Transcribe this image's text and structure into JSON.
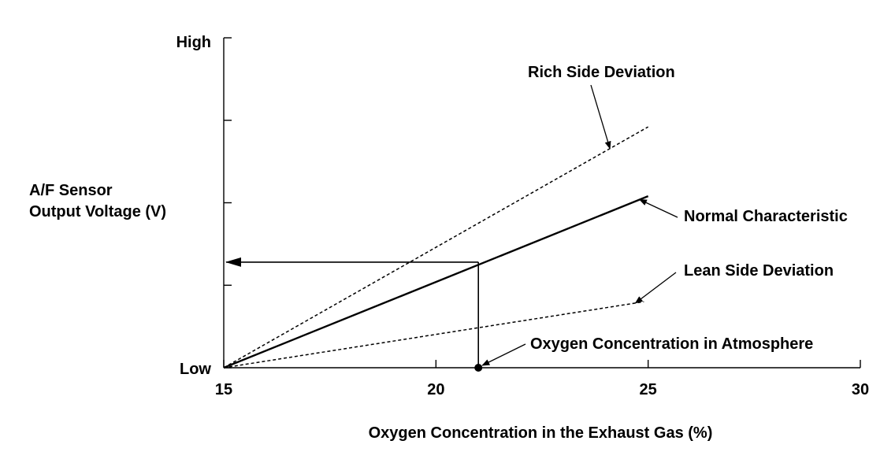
{
  "chart_data": {
    "type": "line",
    "xlabel": "Oxygen Concentration in the Exhaust Gas (%)",
    "ylabel_lines": [
      "A/F Sensor",
      "Output Voltage (V)"
    ],
    "xlim": [
      15,
      30
    ],
    "ylim": [
      0,
      1
    ],
    "x_ticks": [
      15,
      20,
      25,
      30
    ],
    "x_tick_labels": [
      "15",
      "20",
      "25",
      "30"
    ],
    "y_ticks": [
      0,
      0.25,
      0.5,
      0.75,
      1
    ],
    "y_tick_labels": {
      "0": "Low",
      "1": "High"
    },
    "grid": false,
    "series": [
      {
        "name": "Normal Characteristic",
        "style": "solid",
        "x": [
          15,
          25
        ],
        "y": [
          0,
          0.52
        ]
      },
      {
        "name": "Rich Side Deviation",
        "style": "dashed",
        "x": [
          15,
          25
        ],
        "y": [
          0,
          0.73
        ]
      },
      {
        "name": "Lean Side Deviation",
        "style": "dashed",
        "x": [
          15,
          24.9
        ],
        "y": [
          0,
          0.2
        ]
      }
    ],
    "reference": {
      "name": "Oxygen Concentration in Atmosphere",
      "x": 21,
      "y": 0.32
    },
    "annotations": [
      {
        "text": "Rich Side Deviation",
        "target": "Rich Side Deviation"
      },
      {
        "text": "Normal Characteristic",
        "target": "Normal Characteristic"
      },
      {
        "text": "Lean Side Deviation",
        "target": "Lean Side Deviation"
      },
      {
        "text": "Oxygen Concentration in Atmosphere",
        "target": "reference"
      }
    ]
  }
}
